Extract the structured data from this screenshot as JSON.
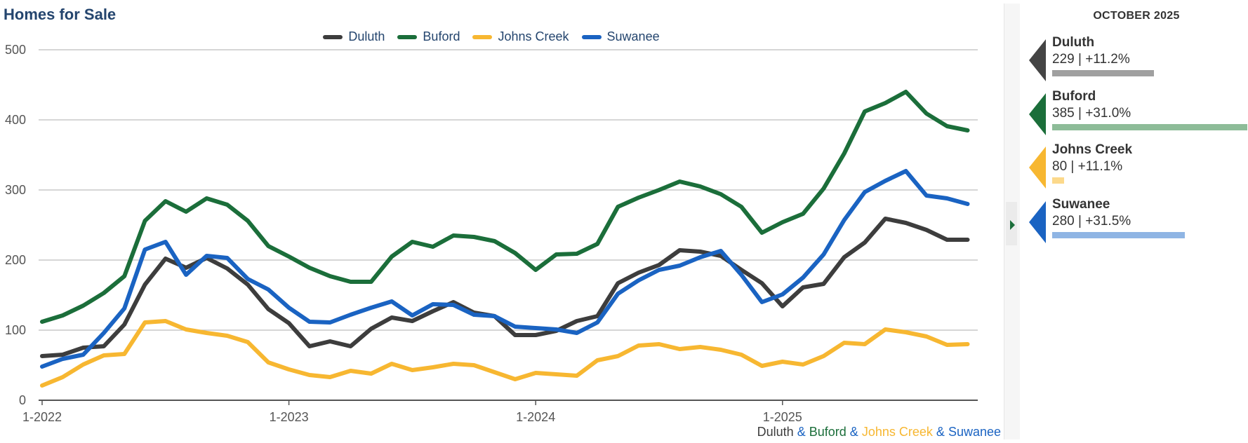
{
  "title": "Homes for Sale",
  "chart_data": {
    "type": "line",
    "title": "Homes for Sale",
    "x_start": "1-2022",
    "x": [
      "1-2022",
      "2-2022",
      "3-2022",
      "4-2022",
      "5-2022",
      "6-2022",
      "7-2022",
      "8-2022",
      "9-2022",
      "10-2022",
      "11-2022",
      "12-2022",
      "1-2023",
      "2-2023",
      "3-2023",
      "4-2023",
      "5-2023",
      "6-2023",
      "7-2023",
      "8-2023",
      "9-2023",
      "10-2023",
      "11-2023",
      "12-2023",
      "1-2024",
      "2-2024",
      "3-2024",
      "4-2024",
      "5-2024",
      "6-2024",
      "7-2024",
      "8-2024",
      "9-2024",
      "10-2024",
      "11-2024",
      "12-2024",
      "1-2025",
      "2-2025",
      "3-2025",
      "4-2025",
      "5-2025",
      "6-2025",
      "7-2025",
      "8-2025",
      "9-2025",
      "10-2025"
    ],
    "xticks": [
      "1-2022",
      "1-2023",
      "1-2024",
      "1-2025"
    ],
    "yticks": [
      0,
      100,
      200,
      300,
      400,
      500
    ],
    "ylim": [
      0,
      500
    ],
    "grid": true,
    "legend_position": "top-center",
    "series": [
      {
        "name": "Duluth",
        "color": "#3d3d3d",
        "values": [
          63,
          65,
          75,
          77,
          108,
          165,
          202,
          189,
          203,
          188,
          165,
          130,
          110,
          77,
          84,
          77,
          102,
          118,
          113,
          127,
          140,
          125,
          120,
          93,
          93,
          99,
          113,
          120,
          167,
          182,
          193,
          214,
          212,
          206,
          186,
          167,
          134,
          161,
          166,
          204,
          225,
          259,
          253,
          243,
          229,
          229
        ]
      },
      {
        "name": "Buford",
        "color": "#1b6e3a",
        "values": [
          112,
          121,
          135,
          153,
          177,
          256,
          284,
          269,
          288,
          279,
          256,
          220,
          205,
          189,
          177,
          169,
          169,
          205,
          226,
          219,
          235,
          233,
          227,
          210,
          186,
          208,
          209,
          223,
          276,
          289,
          300,
          312,
          305,
          294,
          276,
          239,
          254,
          266,
          302,
          352,
          412,
          424,
          440,
          409,
          391,
          385
        ]
      },
      {
        "name": "Johns Creek",
        "color": "#f7b731",
        "values": [
          21,
          33,
          51,
          64,
          66,
          111,
          113,
          101,
          96,
          92,
          83,
          54,
          44,
          36,
          33,
          42,
          38,
          52,
          43,
          47,
          52,
          50,
          40,
          30,
          39,
          37,
          35,
          57,
          63,
          78,
          80,
          73,
          76,
          72,
          65,
          49,
          55,
          51,
          63,
          82,
          80,
          101,
          97,
          91,
          79,
          80
        ]
      },
      {
        "name": "Suwanee",
        "color": "#1a63c2",
        "values": [
          48,
          59,
          65,
          96,
          131,
          215,
          226,
          179,
          206,
          203,
          173,
          158,
          132,
          112,
          111,
          122,
          132,
          141,
          121,
          137,
          136,
          122,
          120,
          105,
          103,
          101,
          96,
          111,
          152,
          171,
          186,
          192,
          204,
          213,
          179,
          140,
          151,
          175,
          208,
          257,
          297,
          313,
          327,
          292,
          288,
          280
        ]
      }
    ]
  },
  "footer": {
    "duluth": "Duluth",
    "buford": "Buford",
    "johns_creek": "Johns Creek",
    "suwanee": "Suwanee",
    "amp": "&"
  },
  "side_panel": {
    "header": "OCTOBER 2025",
    "cards": [
      {
        "name": "Duluth",
        "stat": "229 | +11.2%",
        "color": "#444444",
        "bar_color": "#a0a0a0",
        "bar_fraction": 0.52
      },
      {
        "name": "Buford",
        "stat": "385 | +31.0%",
        "color": "#1b6e3a",
        "bar_color": "#8dbc98",
        "bar_fraction": 1.0
      },
      {
        "name": "Johns Creek",
        "stat": "80 | +11.1%",
        "color": "#f7b731",
        "bar_color": "#fcd98b",
        "bar_fraction": 0.06
      },
      {
        "name": "Suwanee",
        "stat": "280 | +31.5%",
        "color": "#1a63c2",
        "bar_color": "#8fb5e4",
        "bar_fraction": 0.68
      }
    ]
  }
}
